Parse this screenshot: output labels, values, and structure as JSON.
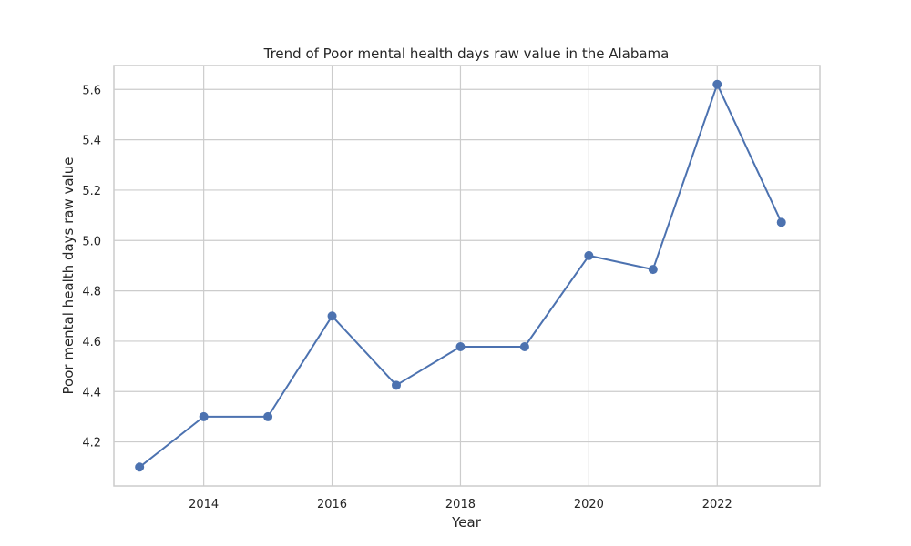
{
  "chart_data": {
    "type": "line",
    "title": "Trend of Poor mental health days raw value in the Alabama",
    "xlabel": "Year",
    "ylabel": "Poor mental health days raw value",
    "xlim": [
      2012.6,
      2023.6
    ],
    "ylim": [
      4.025,
      5.695
    ],
    "x_ticks": [
      2014,
      2016,
      2018,
      2020,
      2022
    ],
    "y_ticks": [
      4.2,
      4.4,
      4.6,
      4.8,
      5.0,
      5.2,
      5.4,
      5.6
    ],
    "x_tick_labels": [
      "2014",
      "2016",
      "2018",
      "2020",
      "2022"
    ],
    "y_tick_labels": [
      "4.2",
      "4.4",
      "4.6",
      "4.8",
      "5.0",
      "5.2",
      "5.4",
      "5.6"
    ],
    "grid": true,
    "series": [
      {
        "color": "#4c72b0",
        "x": [
          2013,
          2014,
          2015,
          2016,
          2017,
          2018,
          2019,
          2020,
          2021,
          2022,
          2023
        ],
        "y": [
          4.1,
          4.3,
          4.3,
          4.7,
          4.425,
          4.578,
          4.578,
          4.94,
          4.885,
          5.62,
          5.072
        ]
      }
    ]
  }
}
